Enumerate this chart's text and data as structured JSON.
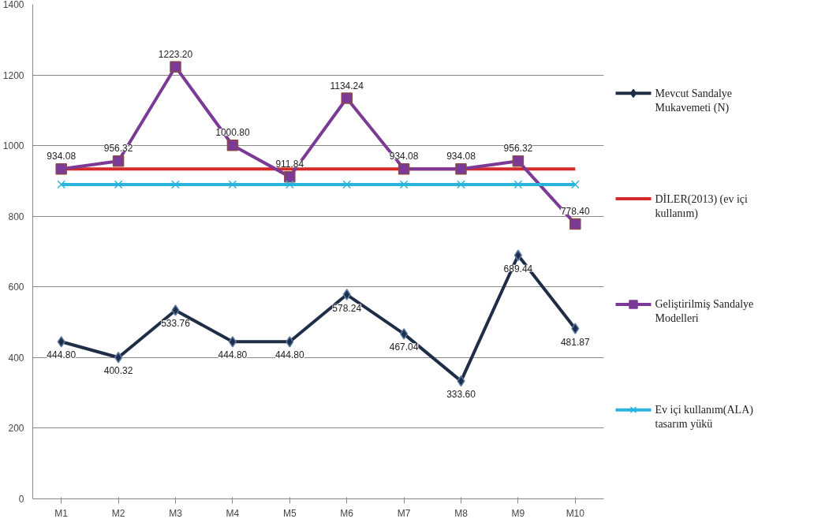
{
  "chart_data": {
    "type": "line",
    "categories": [
      "M1",
      "M2",
      "M3",
      "M4",
      "M5",
      "M6",
      "M7",
      "M8",
      "M9",
      "M10"
    ],
    "ylim": [
      0,
      1400
    ],
    "yticks": [
      0,
      200,
      400,
      600,
      800,
      1000,
      1200,
      1400
    ],
    "grid": "y",
    "legend": "right",
    "series": [
      {
        "name": "Mevcut Sandalye Mukavemeti (N)",
        "color": "#1f2d46",
        "marker": "diamond",
        "values": [
          444.8,
          400.32,
          533.76,
          444.8,
          444.8,
          578.24,
          467.04,
          333.6,
          689.44,
          481.87
        ],
        "value_labels": [
          "444.80",
          "400.32",
          "533.76",
          "444.80",
          "444.80",
          "578.24",
          "467.04",
          "333.60",
          "689.44",
          "481.87"
        ]
      },
      {
        "name": "DİLER(2013) (ev içi kullanım)",
        "color": "#d42a2a",
        "marker": "none",
        "values": [
          934,
          934,
          934,
          934,
          934,
          934,
          934,
          934,
          934,
          934
        ]
      },
      {
        "name": "Geliştirilmiş Sandalye Modelleri",
        "color": "#7b3a96",
        "marker": "square",
        "values": [
          934.08,
          956.32,
          1223.2,
          1000.8,
          911.84,
          1134.24,
          934.08,
          934.08,
          956.32,
          778.4
        ],
        "value_labels": [
          "934.08",
          "956.32",
          "1223.20",
          "1000.80",
          "911.84",
          "1134.24",
          "934.08",
          "934.08",
          "956.32",
          "778.40"
        ]
      },
      {
        "name": "Ev içi kullanım(ALA) tasarım yükü",
        "color": "#2ab4dc",
        "marker": "cross",
        "values": [
          890,
          890,
          890,
          890,
          890,
          890,
          890,
          890,
          890,
          890
        ]
      }
    ]
  }
}
